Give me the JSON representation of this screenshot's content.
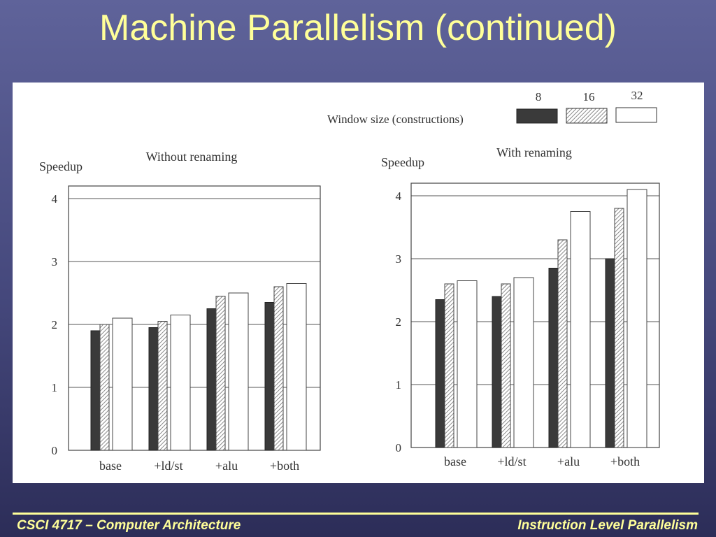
{
  "slide": {
    "title": "Machine Parallelism (continued)",
    "footer_left": "CSCI 4717 – Computer Architecture",
    "footer_right": "Instruction Level Parallelism"
  },
  "legend": {
    "title": "Window size (constructions)",
    "entries": [
      "8",
      "16",
      "32"
    ]
  },
  "colors": {
    "series_8": "#3a3a3a",
    "series_16_hatch": "#9a9a9a",
    "series_32": "#ffffff",
    "title_text": "#ffff99"
  },
  "chart_data": [
    {
      "type": "bar",
      "title": "Without renaming",
      "ylabel": "Speedup",
      "xlabel": "",
      "categories": [
        "base",
        "+ld/st",
        "+alu",
        "+both"
      ],
      "yticks": [
        "0",
        "1",
        "2",
        "3",
        "4"
      ],
      "ylim": [
        0,
        4.2
      ],
      "grid": true,
      "series": [
        {
          "name": "8",
          "values": [
            1.9,
            1.95,
            2.25,
            2.35
          ]
        },
        {
          "name": "16",
          "values": [
            2.0,
            2.05,
            2.45,
            2.6
          ]
        },
        {
          "name": "32",
          "values": [
            2.1,
            2.15,
            2.5,
            2.65
          ]
        }
      ]
    },
    {
      "type": "bar",
      "title": "With renaming",
      "ylabel": "Speedup",
      "xlabel": "",
      "categories": [
        "base",
        "+ld/st",
        "+alu",
        "+both"
      ],
      "yticks": [
        "0",
        "1",
        "2",
        "3",
        "4"
      ],
      "ylim": [
        0,
        4.2
      ],
      "grid": true,
      "series": [
        {
          "name": "8",
          "values": [
            2.35,
            2.4,
            2.85,
            3.0
          ]
        },
        {
          "name": "16",
          "values": [
            2.6,
            2.6,
            3.3,
            3.8
          ]
        },
        {
          "name": "32",
          "values": [
            2.65,
            2.7,
            3.75,
            4.1
          ]
        }
      ]
    }
  ]
}
